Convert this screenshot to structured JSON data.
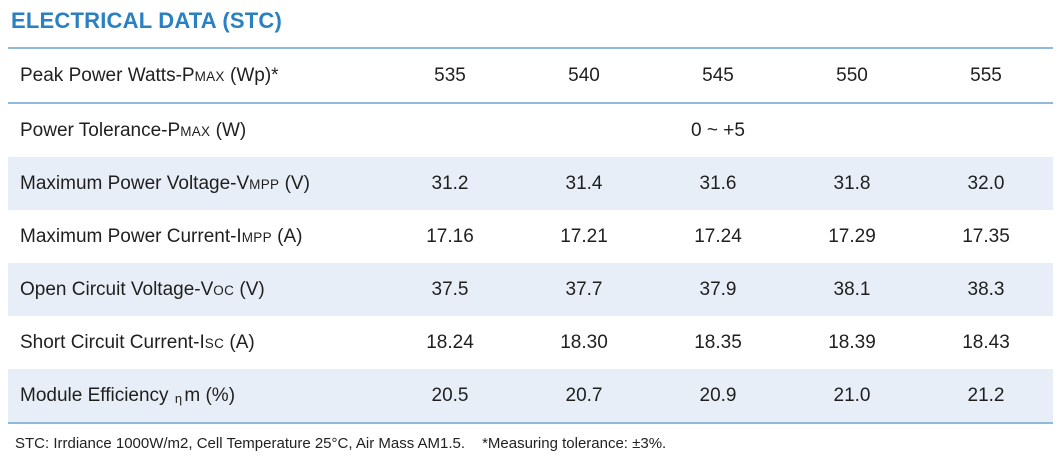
{
  "title": "ELECTRICAL DATA (STC)",
  "colors": {
    "accent": "#2980c2",
    "rule_line": "#90badc",
    "shaded_row": "#e8eef7",
    "text": "#1f1f1f"
  },
  "table": {
    "rows": [
      {
        "label": {
          "main": "Peak Power Watts-P",
          "sub": "MAX",
          "rest": " (Wp)*"
        },
        "values": [
          "535",
          "540",
          "545",
          "550",
          "555"
        ]
      },
      {
        "label": {
          "main": "Power Tolerance-P",
          "sub": "MAX",
          "rest": " (W)"
        },
        "span_value": "0 ~ +5"
      },
      {
        "label": {
          "main": "Maximum Power Voltage-V",
          "sub": "MPP",
          "rest": " (V)"
        },
        "values": [
          "31.2",
          "31.4",
          "31.6",
          "31.8",
          "32.0"
        ]
      },
      {
        "label": {
          "main": "Maximum Power Current-I",
          "sub": "MPP",
          "rest": " (A)"
        },
        "values": [
          "17.16",
          "17.21",
          "17.24",
          "17.29",
          "17.35"
        ]
      },
      {
        "label": {
          "main": "Open Circuit Voltage-V",
          "sub": "OC",
          "rest": " (V)"
        },
        "values": [
          "37.5",
          "37.7",
          "37.9",
          "38.1",
          "38.3"
        ]
      },
      {
        "label": {
          "main": "Short Circuit Current-I",
          "sub": "SC",
          "rest": " (A)"
        },
        "values": [
          "18.24",
          "18.30",
          "18.35",
          "18.39",
          "18.43"
        ]
      },
      {
        "label": {
          "main": "Module Efficiency ",
          "sub": "η",
          "rest": "m (%)"
        },
        "values": [
          "20.5",
          "20.7",
          "20.9",
          "21.0",
          "21.2"
        ]
      }
    ]
  },
  "footer": {
    "stc_note": "STC: Irrdiance 1000W/m2, Cell Temperature 25°C, Air Mass AM1.5.",
    "tolerance_note": "*Measuring tolerance: ±3%."
  }
}
